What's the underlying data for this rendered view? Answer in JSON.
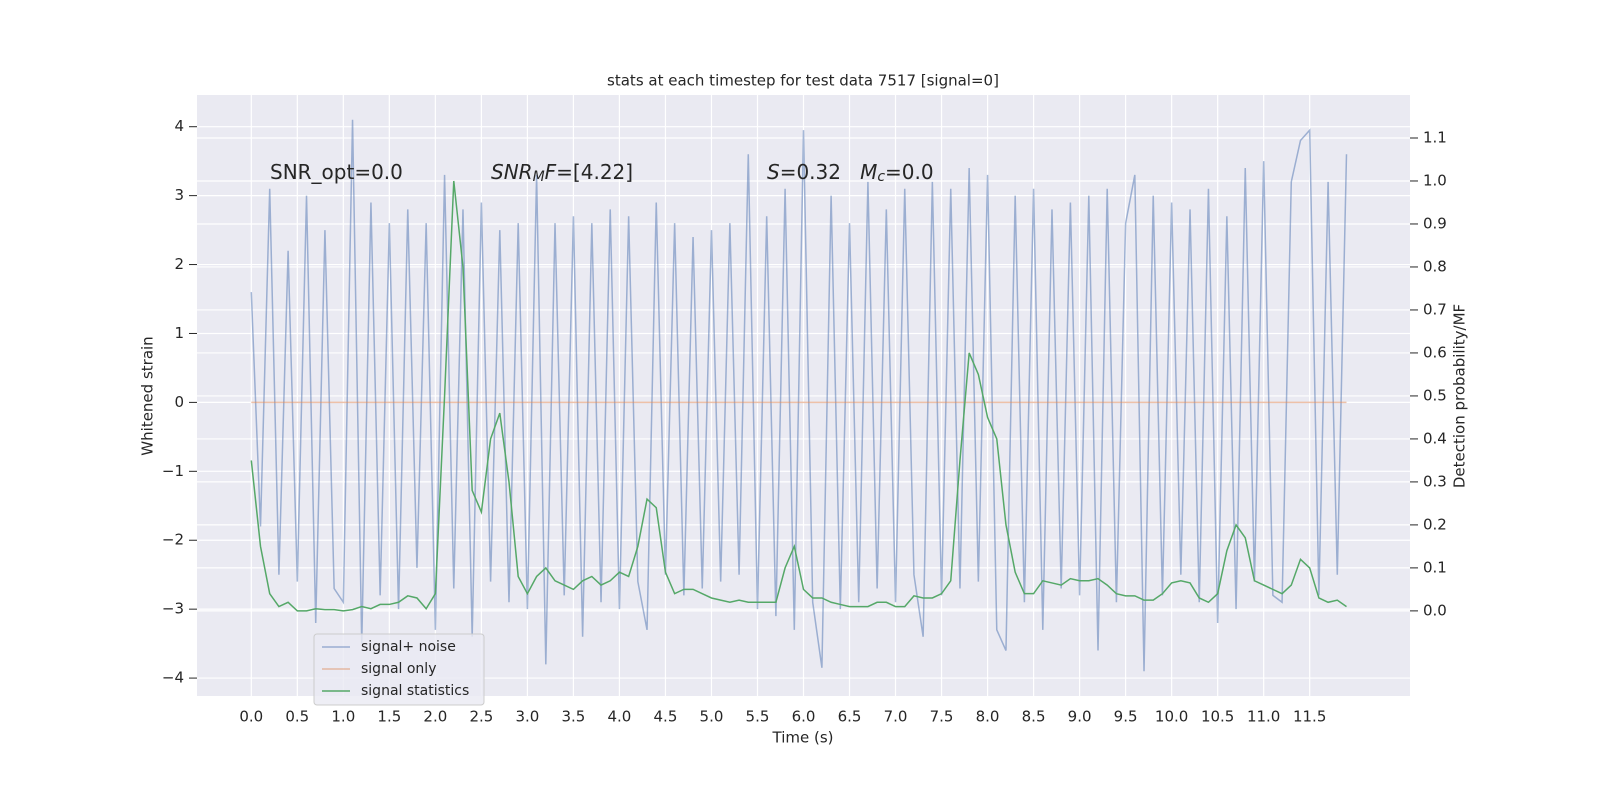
{
  "chart_data": {
    "type": "line",
    "title": "stats at each timestep for test data 7517 [signal=0]",
    "xlabel": "Time (s)",
    "ylabel": "Whitened strain",
    "y2label": "Detection probability/MF",
    "annotations": [
      {
        "parts": [
          {
            "text": "SNR_opt=0.0"
          }
        ]
      },
      {
        "parts": [
          {
            "text": "SNR",
            "italic": true
          },
          {
            "text": "M",
            "italic": true,
            "sub": true
          },
          {
            "text": "F",
            "italic": true
          },
          {
            "text": "=[4.22]"
          }
        ]
      },
      {
        "parts": [
          {
            "text": "S",
            "italic": true
          },
          {
            "text": "=0.32   "
          },
          {
            "text": "M",
            "italic": true
          },
          {
            "text": "c",
            "italic": true,
            "sub": true
          },
          {
            "text": "=0.0"
          }
        ]
      }
    ],
    "x": [
      0.0,
      0.1,
      0.2,
      0.3,
      0.4,
      0.5,
      0.6,
      0.7,
      0.8,
      0.9,
      1.0,
      1.1,
      1.2,
      1.3,
      1.4,
      1.5,
      1.6,
      1.7,
      1.8,
      1.9,
      2.0,
      2.1,
      2.2,
      2.3,
      2.4,
      2.5,
      2.6,
      2.7,
      2.8,
      2.9,
      3.0,
      3.1,
      3.2,
      3.3,
      3.4,
      3.5,
      3.6,
      3.7,
      3.8,
      3.9,
      4.0,
      4.1,
      4.2,
      4.3,
      4.4,
      4.5,
      4.6,
      4.7,
      4.8,
      4.9,
      5.0,
      5.1,
      5.2,
      5.3,
      5.4,
      5.5,
      5.6,
      5.7,
      5.8,
      5.9,
      6.0,
      6.1,
      6.2,
      6.3,
      6.4,
      6.5,
      6.6,
      6.7,
      6.8,
      6.9,
      7.0,
      7.1,
      7.2,
      7.3,
      7.4,
      7.5,
      7.6,
      7.7,
      7.8,
      7.9,
      8.0,
      8.1,
      8.2,
      8.3,
      8.4,
      8.5,
      8.6,
      8.7,
      8.8,
      8.9,
      9.0,
      9.1,
      9.2,
      9.3,
      9.4,
      9.5,
      9.6,
      9.7,
      9.8,
      9.9,
      10.0,
      10.1,
      10.2,
      10.3,
      10.4,
      10.5,
      10.6,
      10.7,
      10.8,
      10.9,
      11.0,
      11.1,
      11.2,
      11.3,
      11.4,
      11.5,
      11.6,
      11.7,
      11.8,
      11.9
    ],
    "series": [
      {
        "name": "signal+ noise",
        "color": "#4c72b0",
        "opacity": 0.5,
        "axis": "y",
        "values": [
          1.6,
          -1.8,
          3.1,
          -2.5,
          2.2,
          -2.6,
          3.0,
          -3.2,
          2.5,
          -2.7,
          -2.9,
          4.1,
          -3.5,
          2.9,
          -2.8,
          2.6,
          -3.0,
          2.8,
          -2.4,
          2.6,
          -3.3,
          3.3,
          -2.7,
          2.8,
          -3.4,
          2.9,
          -2.6,
          2.5,
          -2.9,
          2.6,
          -3.0,
          3.3,
          -3.8,
          2.6,
          -2.8,
          2.7,
          -3.4,
          2.6,
          -2.9,
          2.8,
          -3.0,
          2.7,
          -2.6,
          -3.3,
          2.9,
          -2.5,
          2.6,
          -2.8,
          2.4,
          -2.7,
          2.5,
          -2.6,
          2.6,
          -2.5,
          3.6,
          -3.0,
          2.7,
          -3.1,
          3.1,
          -3.3,
          3.95,
          -2.9,
          -3.85,
          3.0,
          -3.0,
          2.6,
          -2.9,
          3.2,
          -2.7,
          2.8,
          -2.9,
          3.1,
          -2.5,
          -3.4,
          3.2,
          -2.8,
          3.1,
          -2.7,
          3.4,
          -2.6,
          3.3,
          -3.3,
          -3.6,
          3.0,
          -2.9,
          3.1,
          -3.3,
          2.8,
          -2.7,
          2.9,
          -2.8,
          3.0,
          -3.6,
          3.1,
          -2.9,
          2.6,
          3.3,
          -3.9,
          3.0,
          -2.8,
          2.9,
          -2.5,
          2.8,
          -2.9,
          3.1,
          -3.2,
          2.7,
          -3.0,
          3.4,
          -2.6,
          3.5,
          -2.8,
          -2.9,
          3.2,
          3.8,
          3.95,
          -2.8,
          3.2,
          -2.5,
          3.6
        ]
      },
      {
        "name": "signal only",
        "color": "#dd8452",
        "opacity": 0.5,
        "axis": "y",
        "values": [
          0,
          0,
          0,
          0,
          0,
          0,
          0,
          0,
          0,
          0,
          0,
          0,
          0,
          0,
          0,
          0,
          0,
          0,
          0,
          0,
          0,
          0,
          0,
          0,
          0,
          0,
          0,
          0,
          0,
          0,
          0,
          0,
          0,
          0,
          0,
          0,
          0,
          0,
          0,
          0,
          0,
          0,
          0,
          0,
          0,
          0,
          0,
          0,
          0,
          0,
          0,
          0,
          0,
          0,
          0,
          0,
          0,
          0,
          0,
          0,
          0,
          0,
          0,
          0,
          0,
          0,
          0,
          0,
          0,
          0,
          0,
          0,
          0,
          0,
          0,
          0,
          0,
          0,
          0,
          0,
          0,
          0,
          0,
          0,
          0,
          0,
          0,
          0,
          0,
          0,
          0,
          0,
          0,
          0,
          0,
          0,
          0,
          0,
          0,
          0,
          0,
          0,
          0,
          0,
          0,
          0,
          0,
          0,
          0,
          0,
          0,
          0,
          0,
          0,
          0,
          0,
          0,
          0,
          0,
          0
        ]
      },
      {
        "name": "signal statistics",
        "color": "#55a868",
        "opacity": 1,
        "axis": "y2",
        "values": [
          0.35,
          0.15,
          0.04,
          0.01,
          0.02,
          0.0,
          0.0,
          0.005,
          0.003,
          0.003,
          0.0,
          0.003,
          0.01,
          0.005,
          0.015,
          0.015,
          0.02,
          0.035,
          0.03,
          0.005,
          0.04,
          0.5,
          1.0,
          0.8,
          0.28,
          0.23,
          0.4,
          0.46,
          0.3,
          0.08,
          0.04,
          0.08,
          0.1,
          0.07,
          0.06,
          0.05,
          0.07,
          0.08,
          0.06,
          0.07,
          0.09,
          0.08,
          0.15,
          0.26,
          0.24,
          0.09,
          0.04,
          0.05,
          0.05,
          0.04,
          0.03,
          0.025,
          0.02,
          0.025,
          0.02,
          0.02,
          0.02,
          0.02,
          0.1,
          0.15,
          0.05,
          0.03,
          0.03,
          0.02,
          0.015,
          0.01,
          0.01,
          0.01,
          0.02,
          0.02,
          0.01,
          0.01,
          0.035,
          0.03,
          0.03,
          0.04,
          0.07,
          0.35,
          0.6,
          0.55,
          0.45,
          0.4,
          0.2,
          0.09,
          0.04,
          0.04,
          0.07,
          0.065,
          0.06,
          0.075,
          0.07,
          0.07,
          0.075,
          0.06,
          0.04,
          0.035,
          0.035,
          0.025,
          0.025,
          0.04,
          0.065,
          0.07,
          0.065,
          0.03,
          0.02,
          0.04,
          0.14,
          0.2,
          0.17,
          0.07,
          0.06,
          0.05,
          0.04,
          0.06,
          0.12,
          0.1,
          0.03,
          0.02,
          0.025,
          0.01
        ]
      }
    ],
    "xlim": [
      -0.59,
      12.59
    ],
    "ylim": [
      -4.26,
      4.46
    ],
    "y2lim": [
      -0.198,
      1.2
    ],
    "xticks": [
      {
        "value": 0,
        "label": "0.0"
      },
      {
        "value": 0.5,
        "label": "0.5"
      },
      {
        "value": 1,
        "label": "1.0"
      },
      {
        "value": 1.5,
        "label": "1.5"
      },
      {
        "value": 2,
        "label": "2.0"
      },
      {
        "value": 2.5,
        "label": "2.5"
      },
      {
        "value": 3,
        "label": "3.0"
      },
      {
        "value": 3.5,
        "label": "3.5"
      },
      {
        "value": 4,
        "label": "4.0"
      },
      {
        "value": 4.5,
        "label": "4.5"
      },
      {
        "value": 5,
        "label": "5.0"
      },
      {
        "value": 5.5,
        "label": "5.5"
      },
      {
        "value": 6,
        "label": "6.0"
      },
      {
        "value": 6.5,
        "label": "6.5"
      },
      {
        "value": 7,
        "label": "7.0"
      },
      {
        "value": 7.5,
        "label": "7.5"
      },
      {
        "value": 8,
        "label": "8.0"
      },
      {
        "value": 8.5,
        "label": "8.5"
      },
      {
        "value": 9,
        "label": "9.0"
      },
      {
        "value": 9.5,
        "label": "9.5"
      },
      {
        "value": 10,
        "label": "10.0"
      },
      {
        "value": 10.5,
        "label": "10.5"
      },
      {
        "value": 11,
        "label": "11.0"
      },
      {
        "value": 11.5,
        "label": "11.5"
      }
    ],
    "yticks": [
      {
        "value": -4,
        "label": "−4"
      },
      {
        "value": -3,
        "label": "−3"
      },
      {
        "value": -2,
        "label": "−2"
      },
      {
        "value": -1,
        "label": "−1"
      },
      0,
      1,
      2,
      3,
      4
    ],
    "y2ticks": [
      {
        "value": 0,
        "label": "0.0"
      },
      {
        "value": 0.1,
        "label": "0.1"
      },
      {
        "value": 0.2,
        "label": "0.2"
      },
      {
        "value": 0.3,
        "label": "0.3"
      },
      {
        "value": 0.4,
        "label": "0.4"
      },
      {
        "value": 0.5,
        "label": "0.5"
      },
      {
        "value": 0.6,
        "label": "0.6"
      },
      {
        "value": 0.7,
        "label": "0.7"
      },
      {
        "value": 0.8,
        "label": "0.8"
      },
      {
        "value": 0.9,
        "label": "0.9"
      },
      {
        "value": 1,
        "label": "1.0"
      },
      {
        "value": 1.1,
        "label": "1.1"
      }
    ],
    "grid": true,
    "legend": "lower left",
    "background": "#eaeaf2"
  }
}
